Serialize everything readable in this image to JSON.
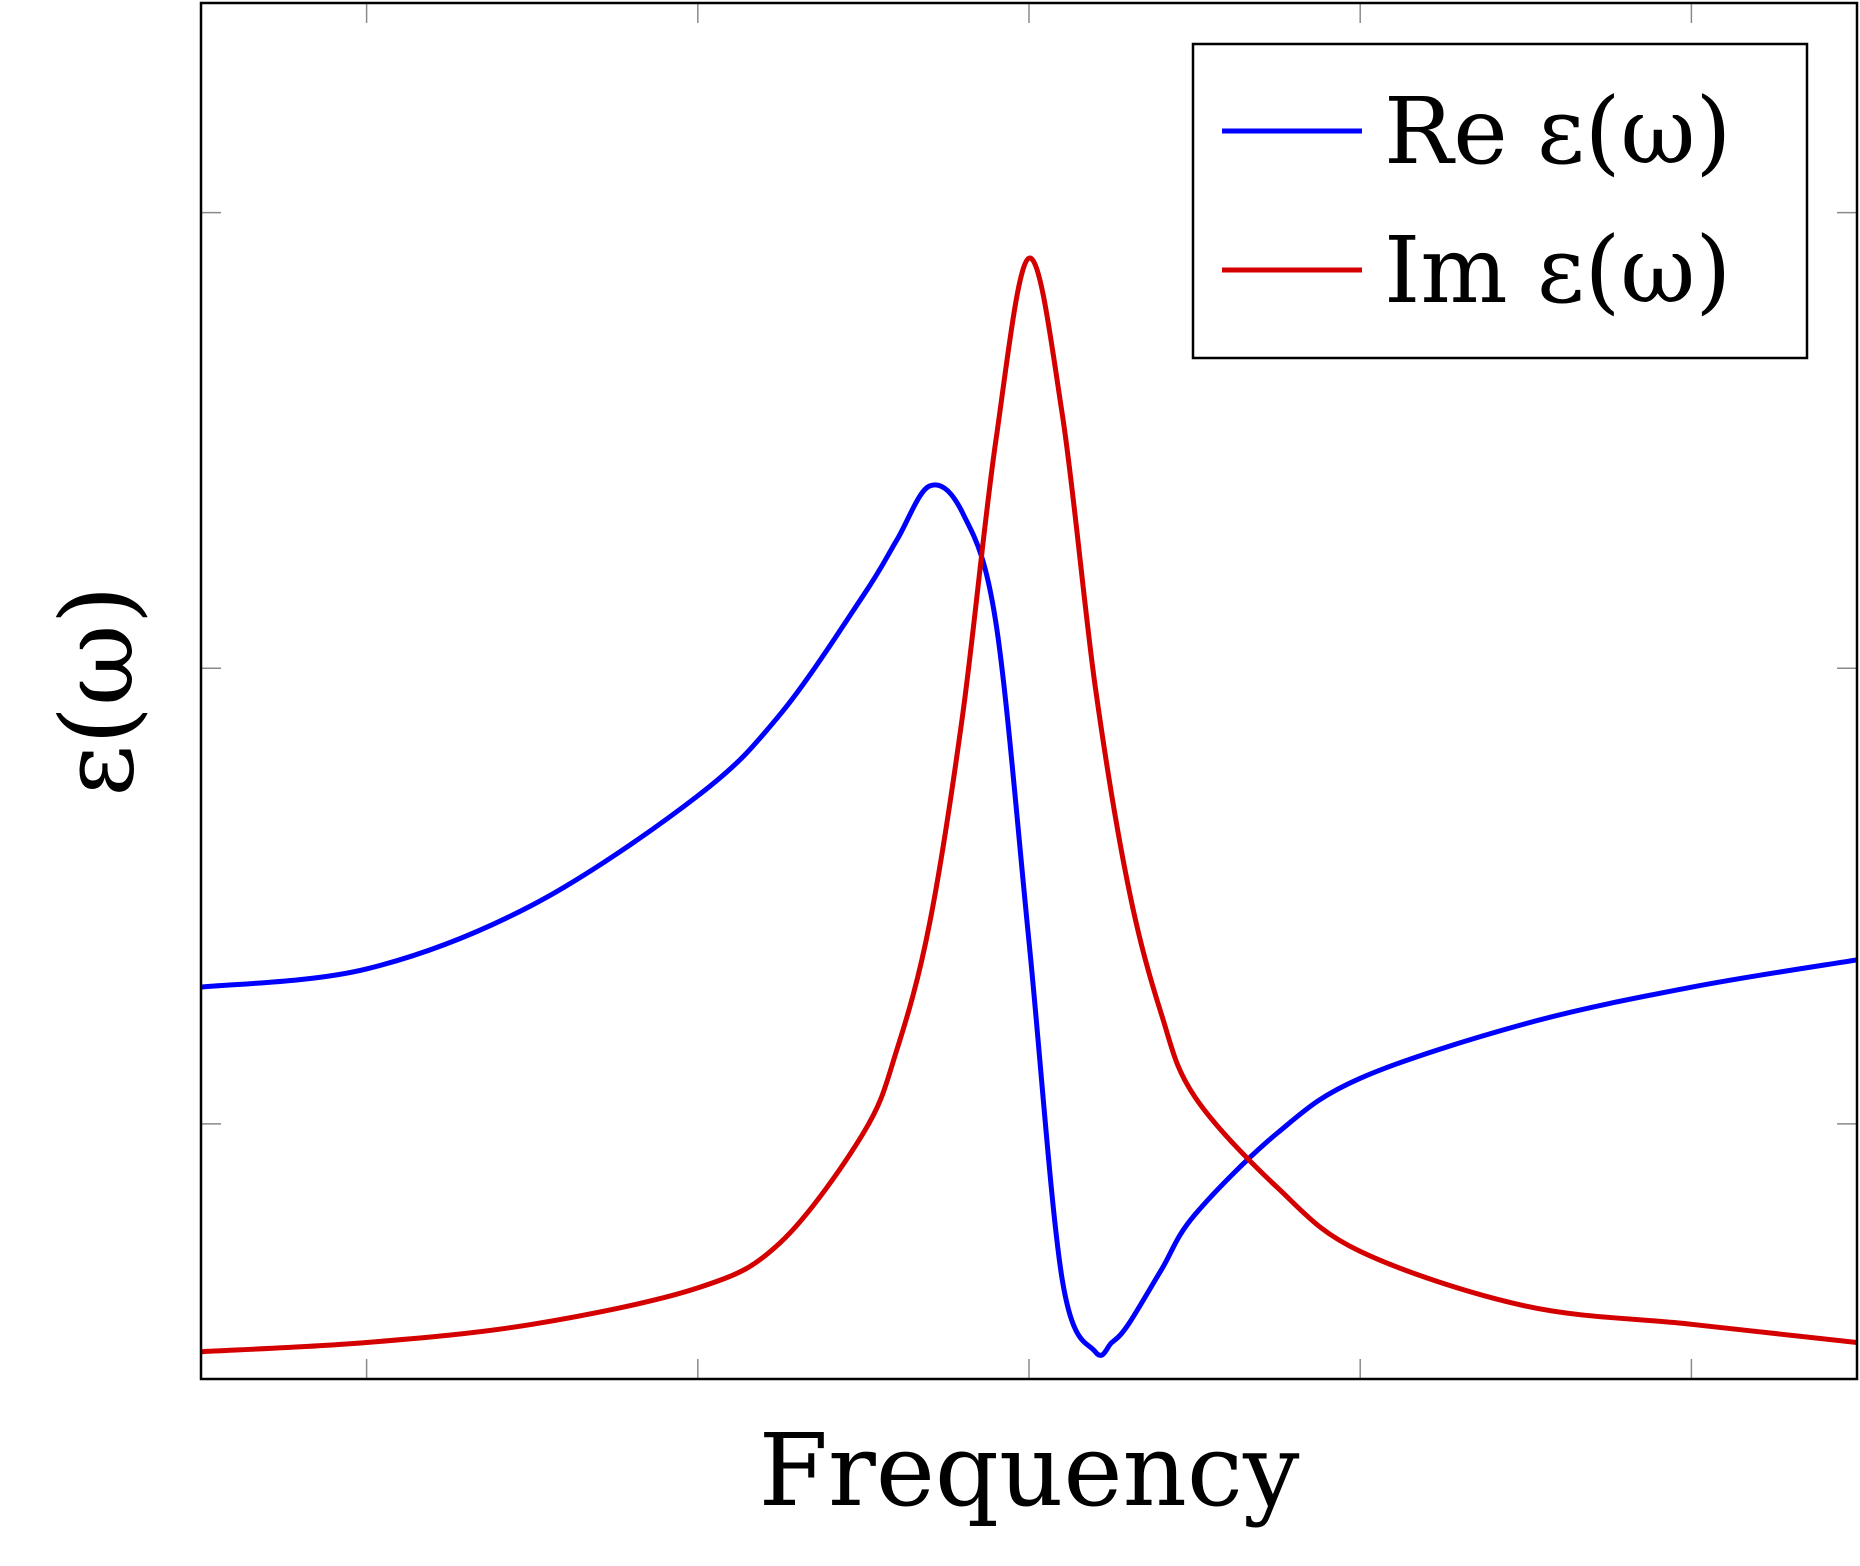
{
  "chart_data": {
    "type": "line",
    "title": "",
    "xlabel": "Frequency",
    "ylabel": "ε(ω)",
    "xlim": [
      0.0,
      10.0
    ],
    "ylim": [
      -0.28,
      1.23
    ],
    "grid": false,
    "legend_position": "top-right",
    "x_tick_values": [
      1,
      3,
      5,
      7,
      9
    ],
    "y_tick_values": [
      0.0,
      0.5,
      1.0
    ],
    "series": [
      {
        "name": "Re ε(ω)",
        "color": "#0000ff",
        "x": [
          0.0,
          1.0,
          2.0,
          3.0,
          3.5,
          4.0,
          4.2,
          4.4,
          4.6,
          4.8,
          5.0,
          5.2,
          5.4,
          5.5,
          5.6,
          5.8,
          6.0,
          6.5,
          7.0,
          8.0,
          9.0,
          10.0
        ],
        "y": [
          0.15,
          0.17,
          0.24,
          0.36,
          0.45,
          0.58,
          0.64,
          0.7,
          0.67,
          0.55,
          0.2,
          -0.17,
          -0.25,
          -0.24,
          -0.22,
          -0.16,
          -0.1,
          -0.01,
          0.05,
          0.11,
          0.15,
          0.18
        ]
      },
      {
        "name": "Im ε(ω)",
        "color": "#d40000",
        "x": [
          0.0,
          1.0,
          2.0,
          3.0,
          3.5,
          4.0,
          4.2,
          4.4,
          4.6,
          4.8,
          5.0,
          5.2,
          5.4,
          5.6,
          5.8,
          6.0,
          6.5,
          7.0,
          8.0,
          9.0,
          10.0
        ],
        "y": [
          -0.25,
          -0.24,
          -0.22,
          -0.18,
          -0.13,
          -0.01,
          0.08,
          0.22,
          0.45,
          0.75,
          0.95,
          0.78,
          0.48,
          0.26,
          0.12,
          0.03,
          -0.07,
          -0.14,
          -0.2,
          -0.22,
          -0.24
        ]
      }
    ]
  }
}
